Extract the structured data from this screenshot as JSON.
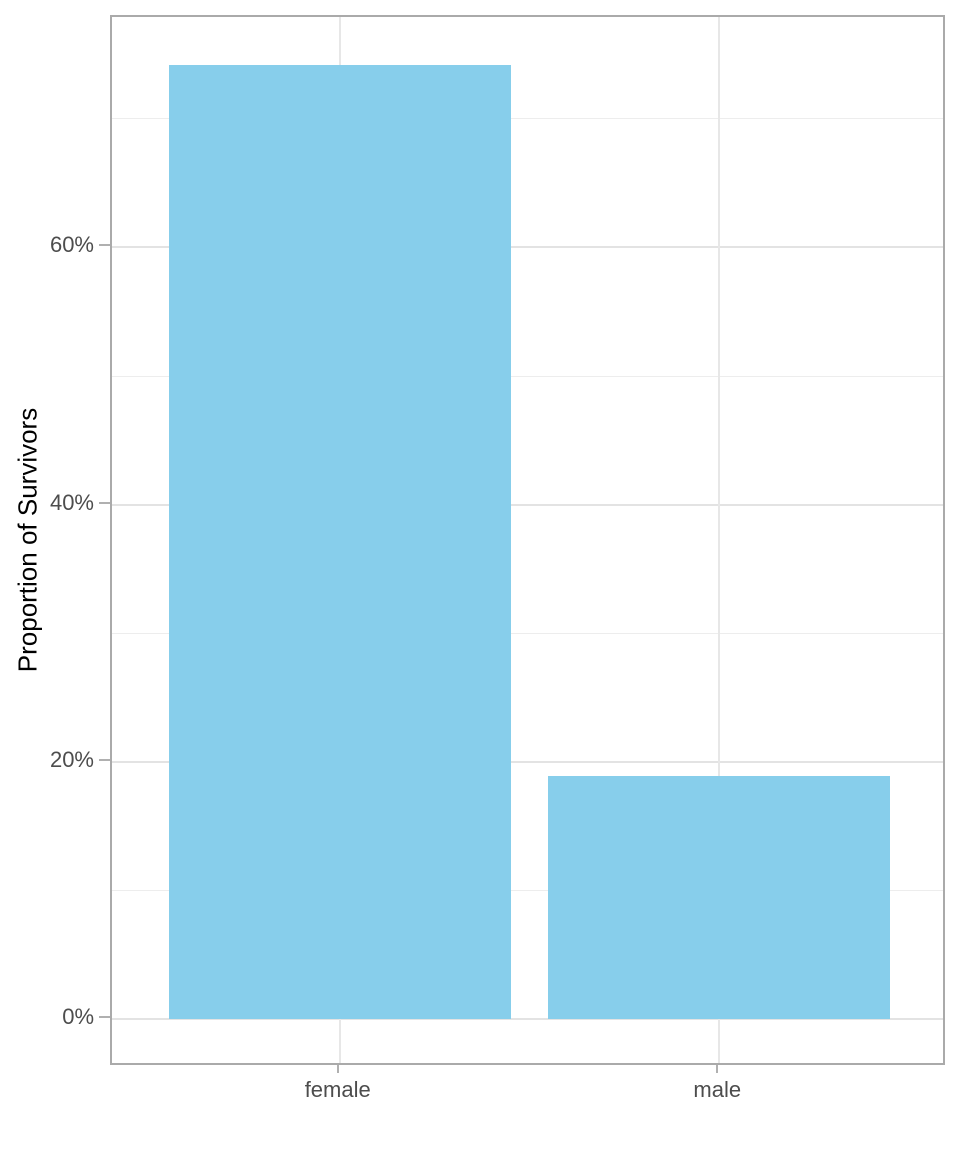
{
  "chart_data": {
    "type": "bar",
    "title": "",
    "xlabel": "",
    "ylabel": "Proportion of Survivors",
    "categories": [
      "female",
      "male"
    ],
    "values": [
      0.742,
      0.189
    ],
    "value_format": "proportion",
    "ylim": [
      0,
      0.742
    ],
    "y_major_ticks": [
      {
        "value": 0.0,
        "label": "0%"
      },
      {
        "value": 0.2,
        "label": "20%"
      },
      {
        "value": 0.4,
        "label": "40%"
      },
      {
        "value": 0.6,
        "label": "60%"
      }
    ],
    "y_minor_ticks": [
      0.1,
      0.3,
      0.5,
      0.7
    ],
    "grid": "on",
    "legend": "none",
    "colors": {
      "bar_fill": "#87CEEB",
      "panel_background": "#ffffff",
      "panel_border": "#aaaaaa",
      "major_grid": "#e3e3e3",
      "minor_grid": "#ededed",
      "tick_mark": "#b0b0b0",
      "axis_text": "#4d4d4d",
      "axis_title": "#000000"
    }
  }
}
